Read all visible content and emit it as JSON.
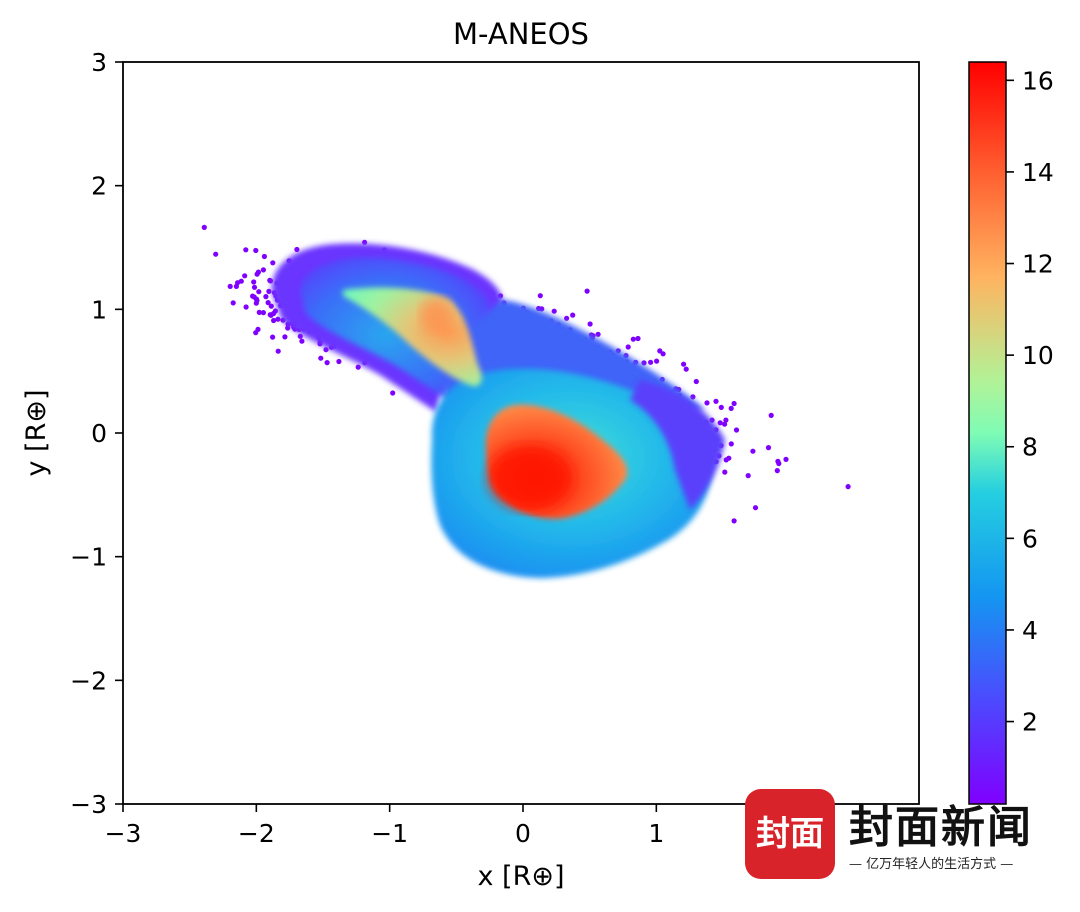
{
  "chart_data": {
    "type": "scatter",
    "title": "M-ANEOS",
    "xlabel": "x [R⊕]",
    "ylabel": "y [R⊕]",
    "xlim": [
      -3,
      2.97
    ],
    "ylim": [
      -3,
      3
    ],
    "xticks": [
      -3,
      -2,
      -1,
      0,
      1
    ],
    "xtick_labels": [
      "−3",
      "−2",
      "−1",
      "0",
      "1"
    ],
    "yticks": [
      -3,
      -2,
      -1,
      0,
      1,
      2,
      3
    ],
    "ytick_labels": [
      "−3",
      "−2",
      "−1",
      "0",
      "1",
      "2",
      "3"
    ],
    "colorbar": {
      "colormap": "rainbow",
      "vmin": 0.2,
      "vmax": 16.4,
      "ticks": [
        2,
        4,
        6,
        8,
        10,
        12,
        14,
        16
      ],
      "tick_labels": [
        "2",
        "4",
        "6",
        "8",
        "10",
        "12",
        "14",
        "16"
      ]
    },
    "grid": false,
    "regions": [
      {
        "name": "upper-left-debris-cloud",
        "center": [
          -1.55,
          1.0
        ],
        "spread": [
          0.55,
          0.3
        ],
        "value": 0.4,
        "angle_deg": -28
      },
      {
        "name": "lower-right-debris-cloud",
        "center": [
          0.45,
          0.45
        ],
        "spread": [
          1.25,
          0.35
        ],
        "value": 0.4,
        "angle_deg": -28
      },
      {
        "name": "upper-body-envelope",
        "center": [
          -0.85,
          1.05
        ],
        "spread": [
          0.75,
          0.45
        ],
        "value": 1.5
      },
      {
        "name": "lower-body-envelope",
        "center": [
          0.25,
          -0.3
        ],
        "spread": [
          0.95,
          0.85
        ],
        "value": 3.5
      },
      {
        "name": "upper-core",
        "center": [
          -0.68,
          0.92
        ],
        "spread": [
          0.55,
          0.22
        ],
        "value": 7.5
      },
      {
        "name": "lower-core",
        "center": [
          0.15,
          -0.3
        ],
        "spread": [
          0.55,
          0.38
        ],
        "value": 13.5
      }
    ],
    "peak_value": 16
  },
  "watermark": {
    "badge": "封面",
    "name": "封面新闻",
    "slogan": "— 亿万年轻人的生活方式 —"
  }
}
